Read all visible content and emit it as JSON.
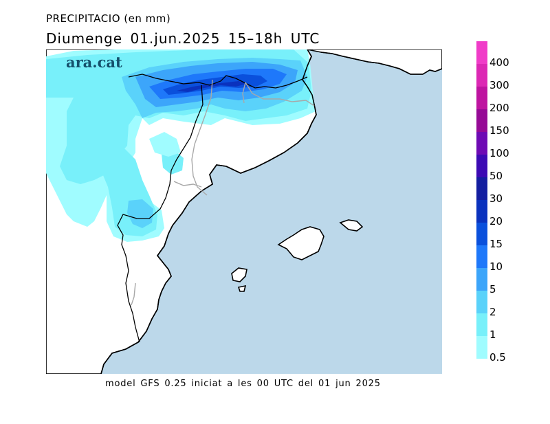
{
  "title": {
    "line1": "PRECIPITACIO (en mm)",
    "line2": "Diumenge  01.jun.2025 15–18h UTC"
  },
  "logo": "ara.cat",
  "footer": "model GFS 0.25 iniciat a les 00 UTC del 01 jun 2025",
  "legend": {
    "bins": [
      {
        "label": "0.5",
        "color": "#a0fcff"
      },
      {
        "label": "1",
        "color": "#78f0fa"
      },
      {
        "label": "2",
        "color": "#5ad2fa"
      },
      {
        "label": "5",
        "color": "#3ca5fa"
      },
      {
        "label": "10",
        "color": "#1e78fa"
      },
      {
        "label": "15",
        "color": "#0a50dc"
      },
      {
        "label": "20",
        "color": "#0a32be"
      },
      {
        "label": "30",
        "color": "#141ea0"
      },
      {
        "label": "50",
        "color": "#3c0ab4"
      },
      {
        "label": "100",
        "color": "#6e0ab4"
      },
      {
        "label": "150",
        "color": "#960a96"
      },
      {
        "label": "200",
        "color": "#be14a0"
      },
      {
        "label": "300",
        "color": "#dc28b4"
      },
      {
        "label": "400",
        "color": "#f03cc8"
      },
      {
        "label": "",
        "color": "#ff50d2"
      }
    ]
  },
  "map_colors": {
    "sea": "#bcd8ea",
    "land": "#ffffff",
    "coast": "#000000",
    "borders": "#a8a8a8"
  }
}
